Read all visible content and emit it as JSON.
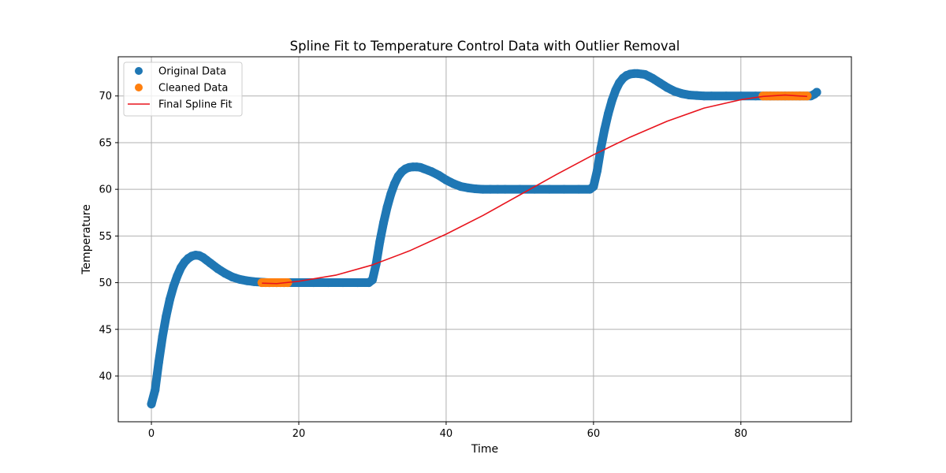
{
  "chart_data": {
    "type": "scatter",
    "title": "Spline Fit to Temperature Control Data with Outlier Removal",
    "xlabel": "Time",
    "ylabel": "Temperature",
    "xlim": [
      -4.5,
      95
    ],
    "ylim": [
      35.1,
      74.2
    ],
    "xticks": [
      0,
      20,
      40,
      60,
      80
    ],
    "yticks": [
      40,
      45,
      50,
      55,
      60,
      65,
      70
    ],
    "grid": true,
    "legend_position": "top-left",
    "colors": {
      "original": "#1f77b4",
      "cleaned": "#ff7f0e",
      "spline": "#e8141d",
      "grid": "#b0b0b0"
    },
    "series": [
      {
        "name": "Original Data",
        "kind": "scatter",
        "x": [
          0,
          0.5,
          1,
          1.5,
          2,
          2.5,
          3,
          3.5,
          4,
          4.5,
          5,
          5.5,
          6,
          6.5,
          7,
          7.5,
          8,
          9,
          10,
          11,
          12,
          13,
          14,
          15,
          16,
          17,
          18,
          20,
          22,
          24,
          26,
          28,
          29.5,
          30,
          30.5,
          31,
          31.5,
          32,
          32.5,
          33,
          33.5,
          34,
          34.5,
          35,
          35.5,
          36,
          36.5,
          37,
          38,
          39,
          40,
          41,
          42,
          43,
          44,
          45,
          46,
          47,
          48,
          50,
          52,
          54,
          56,
          58,
          59.5,
          60,
          60.5,
          61,
          61.5,
          62,
          62.5,
          63,
          63.5,
          64,
          64.5,
          65,
          65.5,
          66,
          66.5,
          67,
          67.5,
          68,
          69,
          70,
          71,
          72,
          73,
          74,
          75,
          76,
          78,
          80,
          82,
          84,
          86,
          88,
          89.5,
          90,
          90.3
        ],
        "y": [
          37.0,
          38.5,
          41.5,
          44.2,
          46.4,
          48.2,
          49.6,
          50.7,
          51.6,
          52.2,
          52.6,
          52.85,
          52.95,
          52.9,
          52.7,
          52.4,
          52.1,
          51.5,
          51.0,
          50.6,
          50.35,
          50.2,
          50.1,
          50.05,
          50.0,
          50.0,
          50.0,
          50.0,
          50.0,
          50.0,
          50.0,
          50.0,
          50.0,
          50.3,
          52.0,
          54.4,
          56.4,
          58.1,
          59.5,
          60.6,
          61.4,
          61.9,
          62.2,
          62.35,
          62.4,
          62.4,
          62.35,
          62.2,
          61.9,
          61.5,
          61.0,
          60.6,
          60.3,
          60.15,
          60.05,
          60.0,
          60.0,
          60.0,
          60.0,
          60.0,
          60.0,
          60.0,
          60.0,
          60.0,
          60.0,
          60.3,
          62.0,
          64.4,
          66.4,
          68.1,
          69.5,
          70.6,
          71.4,
          71.9,
          72.2,
          72.35,
          72.4,
          72.4,
          72.35,
          72.3,
          72.1,
          71.9,
          71.4,
          70.9,
          70.5,
          70.25,
          70.1,
          70.05,
          70.0,
          70.0,
          70.0,
          70.0,
          70.0,
          70.0,
          70.0,
          70.0,
          70.0,
          70.2,
          70.4
        ]
      },
      {
        "name": "Cleaned Data",
        "kind": "scatter",
        "x": [
          15,
          15.5,
          16,
          16.5,
          17,
          17.5,
          18,
          18.5,
          83,
          83.5,
          84,
          84.5,
          85,
          85.5,
          86,
          86.5,
          87,
          87.5,
          88,
          88.5,
          89
        ],
        "y": [
          50.0,
          50.0,
          50.0,
          50.0,
          50.0,
          50.0,
          50.0,
          50.0,
          70.0,
          70.0,
          70.0,
          70.0,
          70.0,
          70.0,
          70.0,
          70.0,
          70.0,
          70.0,
          70.0,
          70.0,
          70.0
        ]
      },
      {
        "name": "Final Spline Fit",
        "kind": "line",
        "x": [
          15,
          17,
          20,
          25,
          30,
          35,
          40,
          45,
          50,
          55,
          60,
          65,
          70,
          75,
          80,
          83,
          86,
          89
        ],
        "y": [
          49.95,
          49.9,
          50.15,
          50.8,
          51.9,
          53.4,
          55.2,
          57.2,
          59.4,
          61.6,
          63.7,
          65.6,
          67.3,
          68.7,
          69.6,
          69.95,
          70.1,
          69.95
        ]
      }
    ]
  }
}
